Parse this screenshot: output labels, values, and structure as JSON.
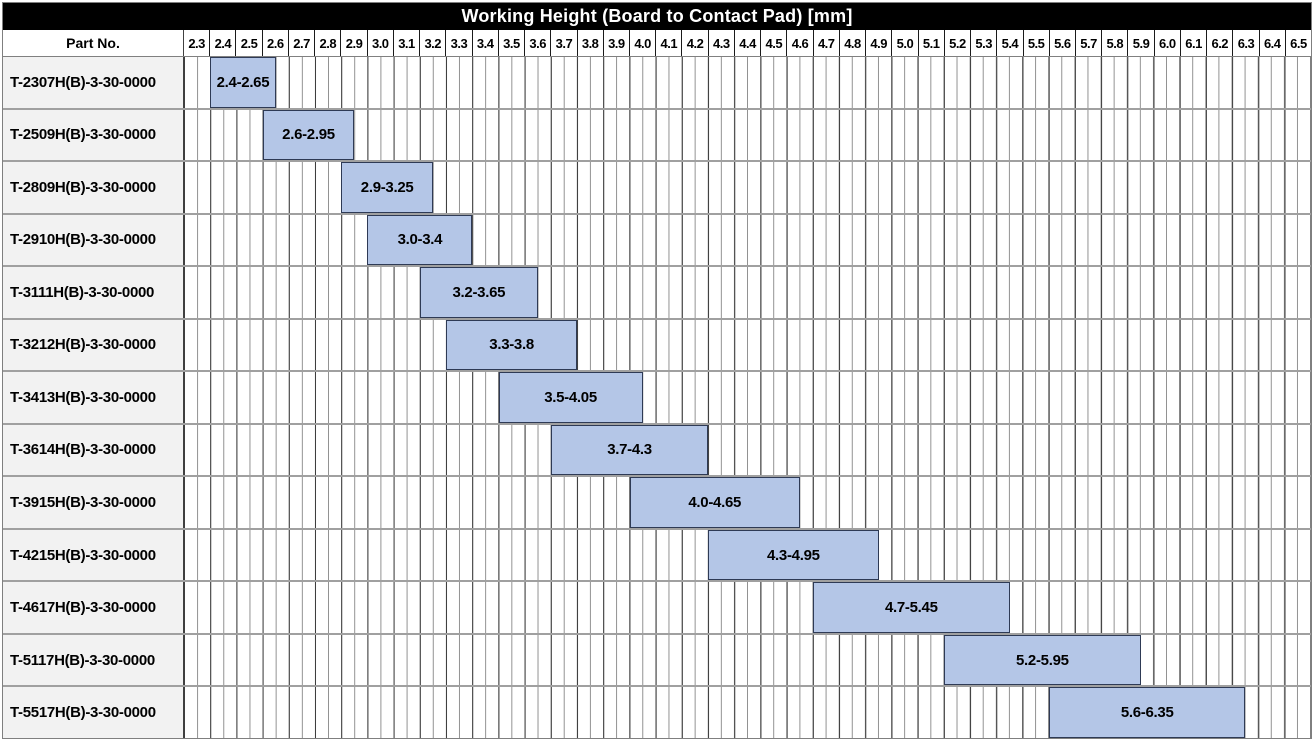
{
  "title": "Working Height (Board to Contact Pad) [mm]",
  "header": {
    "part_col_label": "Part No."
  },
  "colors": {
    "title_bg": "#000000",
    "title_text": "#ffffff",
    "part_col_bg": "#f2f2f2",
    "bar_fill": "#b4c6e7",
    "bar_border": "#2e3a55",
    "grid_major_line": "#3d3d3d",
    "grid_minor_line": "#8f8f8f",
    "row_divider": "#a0a0a0"
  },
  "chart_data": {
    "type": "bar",
    "subtype": "horizontal-range-chart",
    "title": "Working Height (Board to Contact Pad) [mm]",
    "xlabel": "",
    "ylabel": "Part No.",
    "grid": true,
    "legend": false,
    "x_axis": {
      "min": 2.3,
      "max": 6.6,
      "major_step": 0.1,
      "minor_step": 0.05,
      "tick_labels": [
        "2.3",
        "2.4",
        "2.5",
        "2.6",
        "2.7",
        "2.8",
        "2.9",
        "3.0",
        "3.1",
        "3.2",
        "3.3",
        "3.4",
        "3.5",
        "3.6",
        "3.7",
        "3.8",
        "3.9",
        "4.0",
        "4.1",
        "4.2",
        "4.3",
        "4.4",
        "4.5",
        "4.6",
        "4.7",
        "4.8",
        "4.9",
        "5.0",
        "5.1",
        "5.2",
        "5.3",
        "5.4",
        "5.5",
        "5.6",
        "5.7",
        "5.8",
        "5.9",
        "6.0",
        "6.1",
        "6.2",
        "6.3",
        "6.4",
        "6.5"
      ]
    },
    "rows": [
      {
        "part_no": "T-2307H(B)-3-30-0000",
        "range_label": "2.4-2.65",
        "start": 2.4,
        "end": 2.65
      },
      {
        "part_no": "T-2509H(B)-3-30-0000",
        "range_label": "2.6-2.95",
        "start": 2.6,
        "end": 2.95
      },
      {
        "part_no": "T-2809H(B)-3-30-0000",
        "range_label": "2.9-3.25",
        "start": 2.9,
        "end": 3.25
      },
      {
        "part_no": "T-2910H(B)-3-30-0000",
        "range_label": "3.0-3.4",
        "start": 3.0,
        "end": 3.4
      },
      {
        "part_no": "T-3111H(B)-3-30-0000",
        "range_label": "3.2-3.65",
        "start": 3.2,
        "end": 3.65
      },
      {
        "part_no": "T-3212H(B)-3-30-0000",
        "range_label": "3.3-3.8",
        "start": 3.3,
        "end": 3.8
      },
      {
        "part_no": "T-3413H(B)-3-30-0000",
        "range_label": "3.5-4.05",
        "start": 3.5,
        "end": 4.05
      },
      {
        "part_no": "T-3614H(B)-3-30-0000",
        "range_label": "3.7-4.3",
        "start": 3.7,
        "end": 4.3
      },
      {
        "part_no": "T-3915H(B)-3-30-0000",
        "range_label": "4.0-4.65",
        "start": 4.0,
        "end": 4.65
      },
      {
        "part_no": "T-4215H(B)-3-30-0000",
        "range_label": "4.3-4.95",
        "start": 4.3,
        "end": 4.95
      },
      {
        "part_no": "T-4617H(B)-3-30-0000",
        "range_label": "4.7-5.45",
        "start": 4.7,
        "end": 5.45
      },
      {
        "part_no": "T-5117H(B)-3-30-0000",
        "range_label": "5.2-5.95",
        "start": 5.2,
        "end": 5.95
      },
      {
        "part_no": "T-5517H(B)-3-30-0000",
        "range_label": "5.6-6.35",
        "start": 5.6,
        "end": 6.35
      }
    ]
  }
}
